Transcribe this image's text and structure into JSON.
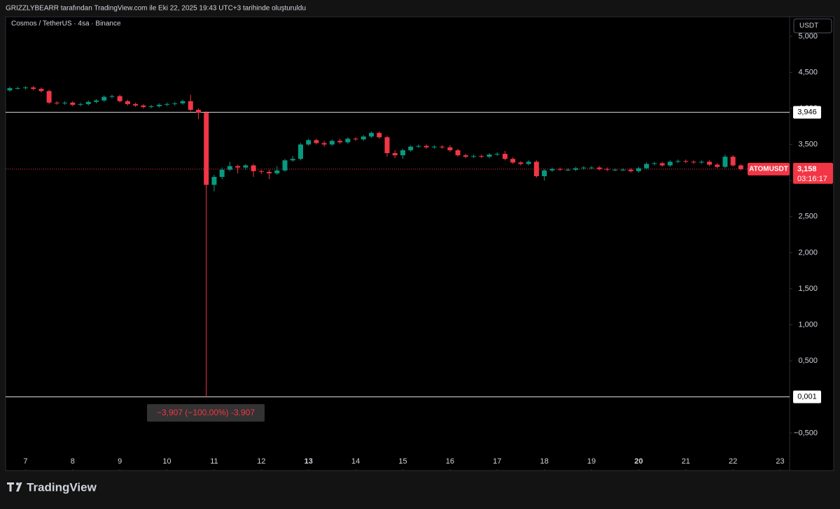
{
  "header": "GRIZZLYBEARR tarafından TradingView.com ile Eki 22, 2025 19:43 UTC+3 tarihinde oluşturuldu",
  "footer": {
    "brand": "TradingView"
  },
  "chart_data": {
    "type": "candlestick",
    "title": "Cosmos / TetherUS · 4sa · Binance",
    "currency": "USDT",
    "up_color": "#089981",
    "down_color": "#f23645",
    "grid": false,
    "open": [
      4.25,
      4.28,
      4.28,
      4.29,
      4.27,
      4.24,
      4.08,
      4.07,
      4.08,
      4.05,
      4.06,
      4.09,
      4.11,
      4.16,
      4.17,
      4.1,
      4.06,
      4.04,
      4.02,
      4.03,
      4.05,
      4.06,
      4.07,
      4.1,
      3.98,
      3.94,
      2.94,
      3.05,
      3.15,
      3.2,
      3.18,
      3.21,
      3.13,
      3.12,
      3.1,
      3.14,
      3.28,
      3.3,
      3.5,
      3.56,
      3.52,
      3.5,
      3.55,
      3.53,
      3.58,
      3.57,
      3.61,
      3.66,
      3.6,
      3.38,
      3.35,
      3.42,
      3.47,
      3.48,
      3.46,
      3.47,
      3.46,
      3.42,
      3.35,
      3.33,
      3.34,
      3.33,
      3.36,
      3.37,
      3.3,
      3.25,
      3.23,
      3.26,
      3.06,
      3.14,
      3.16,
      3.15,
      3.15,
      3.17,
      3.18,
      3.18,
      3.16,
      3.15,
      3.15,
      3.15,
      3.13,
      3.17,
      3.23,
      3.24,
      3.21,
      3.26,
      3.27,
      3.26,
      3.25,
      3.26,
      3.22,
      3.19,
      3.33,
      3.21
    ],
    "high": [
      4.3,
      4.3,
      4.31,
      4.31,
      4.29,
      4.26,
      4.1,
      4.1,
      4.1,
      4.08,
      4.11,
      4.13,
      4.18,
      4.19,
      4.19,
      4.12,
      4.08,
      4.06,
      4.05,
      4.07,
      4.08,
      4.09,
      4.12,
      4.19,
      4.0,
      3.96,
      3.08,
      3.18,
      3.26,
      3.22,
      3.23,
      3.23,
      3.15,
      3.15,
      3.2,
      3.3,
      3.34,
      3.52,
      3.58,
      3.58,
      3.55,
      3.57,
      3.58,
      3.6,
      3.6,
      3.63,
      3.68,
      3.68,
      3.62,
      3.42,
      3.44,
      3.49,
      3.5,
      3.5,
      3.49,
      3.49,
      3.49,
      3.44,
      3.37,
      3.36,
      3.36,
      3.38,
      3.39,
      3.41,
      3.32,
      3.27,
      3.28,
      3.28,
      3.16,
      3.18,
      3.18,
      3.17,
      3.19,
      3.2,
      3.2,
      3.2,
      3.18,
      3.17,
      3.17,
      3.17,
      3.19,
      3.25,
      3.26,
      3.26,
      3.28,
      3.29,
      3.29,
      3.28,
      3.28,
      3.28,
      3.24,
      3.36,
      3.35,
      3.23
    ],
    "low": [
      4.23,
      4.26,
      4.26,
      4.25,
      4.22,
      4.06,
      4.05,
      4.05,
      4.03,
      4.03,
      4.04,
      4.07,
      4.09,
      4.14,
      4.08,
      4.04,
      4.02,
      4.0,
      4.0,
      4.01,
      4.03,
      4.04,
      4.05,
      3.96,
      3.85,
      0.001,
      2.85,
      3.02,
      3.13,
      3.1,
      3.15,
      3.05,
      3.09,
      3.02,
      3.08,
      3.12,
      3.26,
      3.28,
      3.48,
      3.5,
      3.47,
      3.48,
      3.51,
      3.51,
      3.55,
      3.55,
      3.59,
      3.58,
      3.33,
      3.31,
      3.3,
      3.4,
      3.45,
      3.44,
      3.44,
      3.44,
      3.4,
      3.33,
      3.31,
      3.31,
      3.31,
      3.31,
      3.34,
      3.28,
      3.23,
      3.21,
      3.21,
      3.04,
      3.0,
      3.12,
      3.13,
      3.13,
      3.13,
      3.15,
      3.16,
      3.14,
      3.13,
      3.13,
      3.13,
      3.11,
      3.11,
      3.15,
      3.21,
      3.19,
      3.19,
      3.24,
      3.24,
      3.23,
      3.23,
      3.2,
      3.17,
      3.17,
      3.19,
      3.14
    ],
    "close": [
      4.28,
      4.28,
      4.29,
      4.27,
      4.24,
      4.08,
      4.07,
      4.08,
      4.05,
      4.06,
      4.09,
      4.11,
      4.16,
      4.17,
      4.1,
      4.06,
      4.04,
      4.02,
      4.03,
      4.05,
      4.06,
      4.07,
      4.1,
      3.98,
      3.94,
      2.94,
      3.05,
      3.15,
      3.2,
      3.18,
      3.21,
      3.13,
      3.12,
      3.1,
      3.14,
      3.28,
      3.3,
      3.5,
      3.56,
      3.52,
      3.5,
      3.55,
      3.53,
      3.58,
      3.57,
      3.61,
      3.66,
      3.6,
      3.38,
      3.35,
      3.42,
      3.47,
      3.48,
      3.46,
      3.47,
      3.46,
      3.42,
      3.35,
      3.33,
      3.34,
      3.33,
      3.36,
      3.37,
      3.3,
      3.25,
      3.23,
      3.26,
      3.06,
      3.14,
      3.16,
      3.15,
      3.15,
      3.17,
      3.18,
      3.18,
      3.16,
      3.15,
      3.15,
      3.15,
      3.13,
      3.17,
      3.23,
      3.24,
      3.21,
      3.26,
      3.27,
      3.26,
      3.25,
      3.26,
      3.22,
      3.19,
      3.33,
      3.21,
      3.158
    ],
    "xlim": [
      -0.53,
      99.2
    ],
    "xticks": [
      {
        "value": 2,
        "label": "7"
      },
      {
        "value": 8,
        "label": "8"
      },
      {
        "value": 14,
        "label": "9"
      },
      {
        "value": 20,
        "label": "10"
      },
      {
        "value": 26,
        "label": "11"
      },
      {
        "value": 32,
        "label": "12"
      },
      {
        "value": 38,
        "label": "13",
        "bold": true
      },
      {
        "value": 44,
        "label": "14"
      },
      {
        "value": 50,
        "label": "15"
      },
      {
        "value": 56,
        "label": "16"
      },
      {
        "value": 62,
        "label": "17"
      },
      {
        "value": 68,
        "label": "18"
      },
      {
        "value": 74,
        "label": "19"
      },
      {
        "value": 80,
        "label": "20",
        "bold": true
      },
      {
        "value": 86,
        "label": "21"
      },
      {
        "value": 92,
        "label": "22"
      },
      {
        "value": 98,
        "label": "23"
      }
    ],
    "ylim": [
      -1.02,
      5.27
    ],
    "yticks": [
      {
        "value": 5,
        "label": "5,000"
      },
      {
        "value": 4.5,
        "label": "4,500"
      },
      {
        "value": 4,
        "label": "4,000"
      },
      {
        "value": 3.5,
        "label": "3,500"
      },
      {
        "value": 3,
        "label": "3,000"
      },
      {
        "value": 2.5,
        "label": "2,500"
      },
      {
        "value": 2,
        "label": "2,000"
      },
      {
        "value": 1.5,
        "label": "1,500"
      },
      {
        "value": 1,
        "label": "1,000"
      },
      {
        "value": 0.5,
        "label": "0,500"
      },
      {
        "value": -0.5,
        "label": "−0,500"
      }
    ],
    "hlines": [
      {
        "value": 3.946,
        "label": "3,946"
      },
      {
        "value": 0.001,
        "label": "0,001"
      }
    ],
    "last_price": {
      "symbol": "ATOMUSDT",
      "value": 3.158,
      "label": "3,158",
      "countdown": "03:16:17"
    },
    "annotation": "−3,907 (−100,00%) -3.907"
  }
}
